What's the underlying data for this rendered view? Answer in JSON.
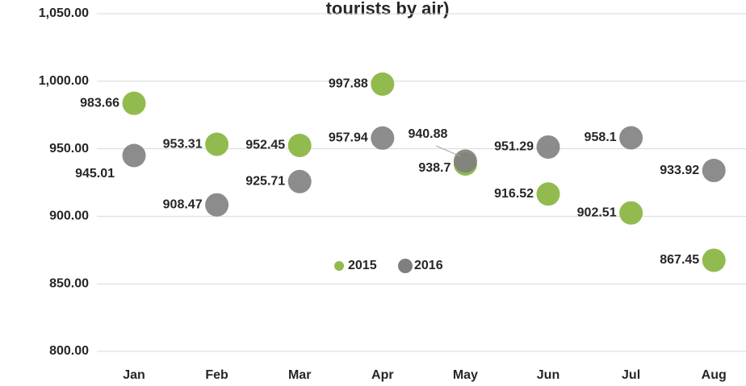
{
  "chart_data": {
    "type": "bubble",
    "title": "tourists by air)",
    "categories": [
      "Jan",
      "Feb",
      "Mar",
      "Apr",
      "May",
      "Jun",
      "Jul",
      "Aug"
    ],
    "series": [
      {
        "name": "2015",
        "color": "#92bb4f",
        "values": [
          983.66,
          953.31,
          952.45,
          997.88,
          938.7,
          916.52,
          902.51,
          867.45
        ]
      },
      {
        "name": "2016",
        "color": "#7f7f7f",
        "values": [
          945.01,
          908.47,
          925.71,
          957.94,
          940.88,
          951.29,
          958.1,
          933.92
        ]
      }
    ],
    "ylim": [
      800,
      1050
    ],
    "yticks": [
      {
        "value": 800,
        "label": "800.00"
      },
      {
        "value": 850,
        "label": "850.00"
      },
      {
        "value": 900,
        "label": "900.00"
      },
      {
        "value": 950,
        "label": "950.00"
      },
      {
        "value": 1000,
        "label": "1,000.00"
      },
      {
        "value": 1050,
        "label": "1,050.00"
      }
    ],
    "grid": true
  }
}
